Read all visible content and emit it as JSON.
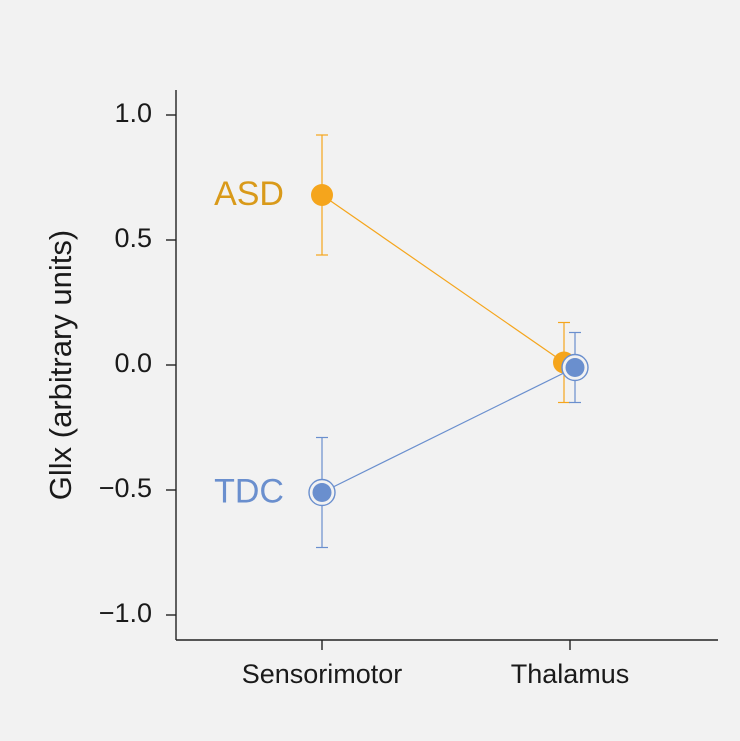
{
  "chart_data": {
    "type": "line",
    "categories": [
      "Sensorimotor",
      "Thalamus"
    ],
    "ylabel": "Gllx (arbitrary units)",
    "xlabel": "",
    "ylim": [
      -1.1,
      1.1
    ],
    "yticks": [
      {
        "value": 1.0,
        "label": "1.0"
      },
      {
        "value": 0.5,
        "label": "0.5"
      },
      {
        "value": 0.0,
        "label": "0.0"
      },
      {
        "value": -0.5,
        "label": "−0.5"
      },
      {
        "value": -1.0,
        "label": "−1.0"
      }
    ],
    "grid": false,
    "series": [
      {
        "name": "ASD",
        "color": "#f5a51c",
        "label_color": "#d99a1a",
        "marker": "filled-circle",
        "values": [
          0.68,
          0.01
        ],
        "error_upper": [
          0.92,
          0.17
        ],
        "error_lower": [
          0.44,
          -0.15
        ]
      },
      {
        "name": "TDC",
        "color": "#6a8fce",
        "label_color": "#6a8fce",
        "marker": "ringed-circle",
        "values": [
          -0.51,
          -0.01
        ],
        "error_upper": [
          -0.29,
          0.13
        ],
        "error_lower": [
          -0.73,
          -0.15
        ]
      }
    ]
  }
}
